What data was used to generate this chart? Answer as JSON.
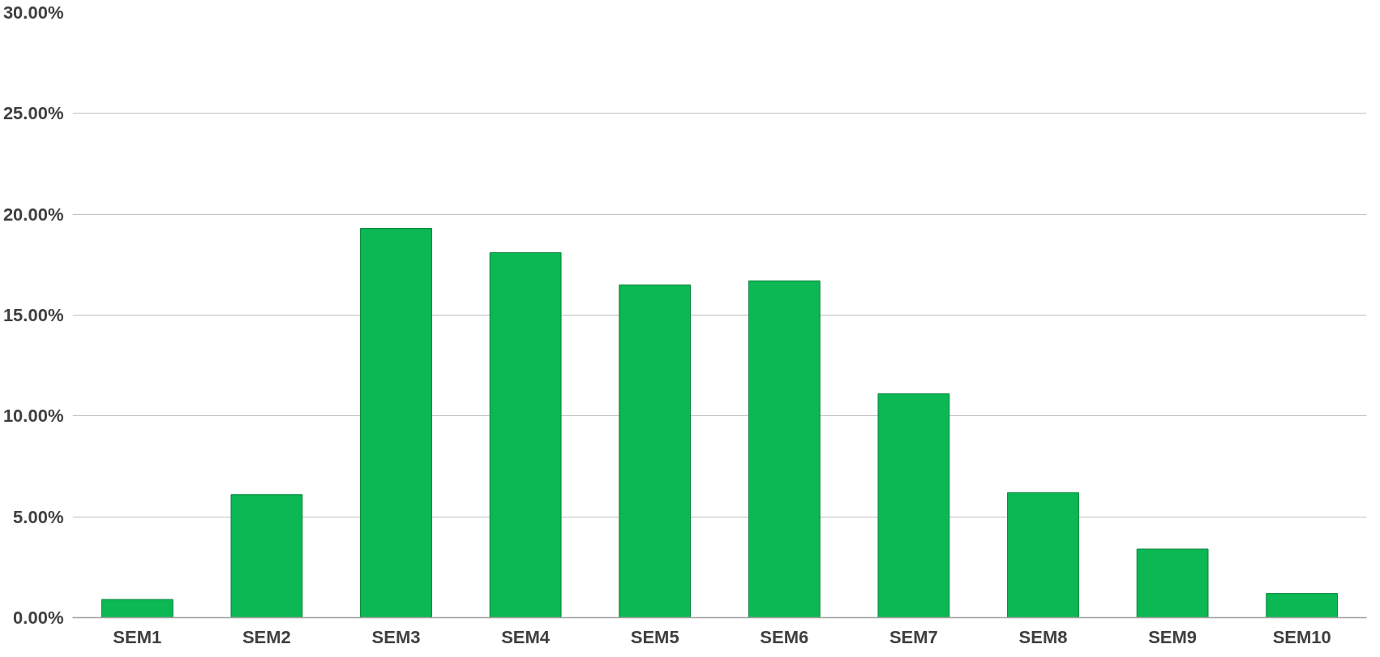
{
  "chart_data": {
    "type": "bar",
    "categories": [
      "SEM1",
      "SEM2",
      "SEM3",
      "SEM4",
      "SEM5",
      "SEM6",
      "SEM7",
      "SEM8",
      "SEM9",
      "SEM10"
    ],
    "values": [
      0.9,
      6.1,
      19.3,
      18.1,
      16.5,
      16.7,
      11.1,
      6.2,
      3.4,
      1.2
    ],
    "color": "#0bb853",
    "ylim": [
      0,
      30
    ],
    "yticks": [
      {
        "value": 0,
        "label": "0.00%"
      },
      {
        "value": 5,
        "label": "5.00%"
      },
      {
        "value": 10,
        "label": "10.00%"
      },
      {
        "value": 15,
        "label": "15.00%"
      },
      {
        "value": 20,
        "label": "20.00%"
      },
      {
        "value": 25,
        "label": "25.00%"
      },
      {
        "value": 30,
        "label": "30.00%"
      }
    ],
    "grid": "y"
  }
}
